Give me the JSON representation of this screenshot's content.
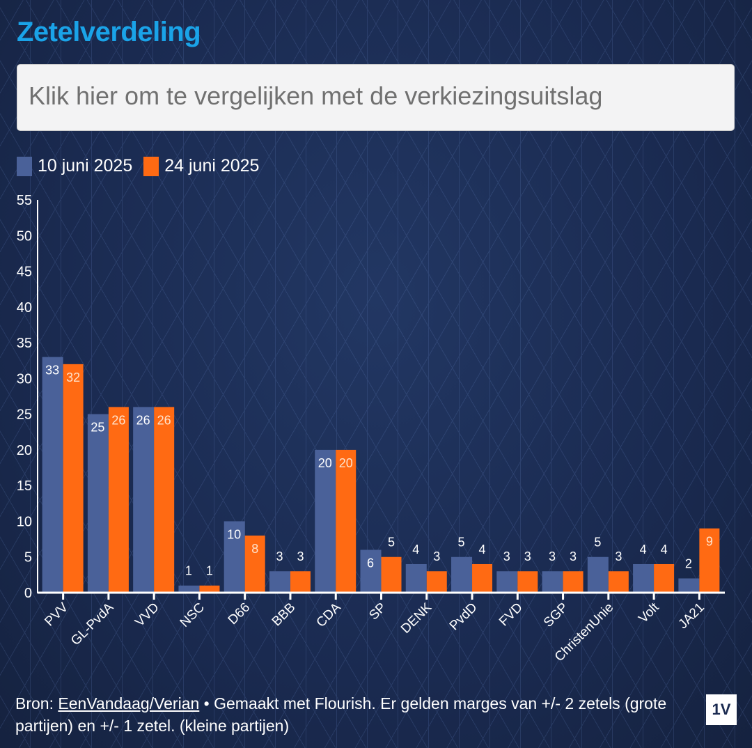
{
  "title": "Zetelverdeling",
  "compare_button": "Klik hier om te vergelijken met de verkiezingsuitslag",
  "colors": {
    "series1": "#4a6199",
    "series2": "#ff6a13",
    "title": "#1aa3e8",
    "background": "#1b2a50"
  },
  "chart_data": {
    "type": "bar",
    "categories": [
      "PVV",
      "GL-PvdA",
      "VVD",
      "NSC",
      "D66",
      "BBB",
      "CDA",
      "SP",
      "DENK",
      "PvdD",
      "FVD",
      "SGP",
      "ChristenUnie",
      "Volt",
      "JA21"
    ],
    "series": [
      {
        "name": "10 juni 2025",
        "values": [
          33,
          25,
          26,
          1,
          10,
          3,
          20,
          6,
          4,
          5,
          3,
          3,
          5,
          4,
          2
        ]
      },
      {
        "name": "24 juni 2025",
        "values": [
          32,
          26,
          26,
          1,
          8,
          3,
          20,
          5,
          3,
          4,
          3,
          3,
          3,
          4,
          9
        ]
      }
    ],
    "ylim": [
      0,
      55
    ],
    "yticks": [
      0,
      5,
      10,
      15,
      20,
      25,
      30,
      35,
      40,
      45,
      50,
      55
    ],
    "legend": "top-left",
    "grid": false
  },
  "footer": {
    "prefix": "Bron: ",
    "source_link": "EenVandaag/Verian",
    "text": " • Gemaakt met Flourish. Er gelden marges van +/- 2 zetels (grote partijen) en +/- 1 zetel. (kleine partijen)"
  },
  "logo": "1V"
}
